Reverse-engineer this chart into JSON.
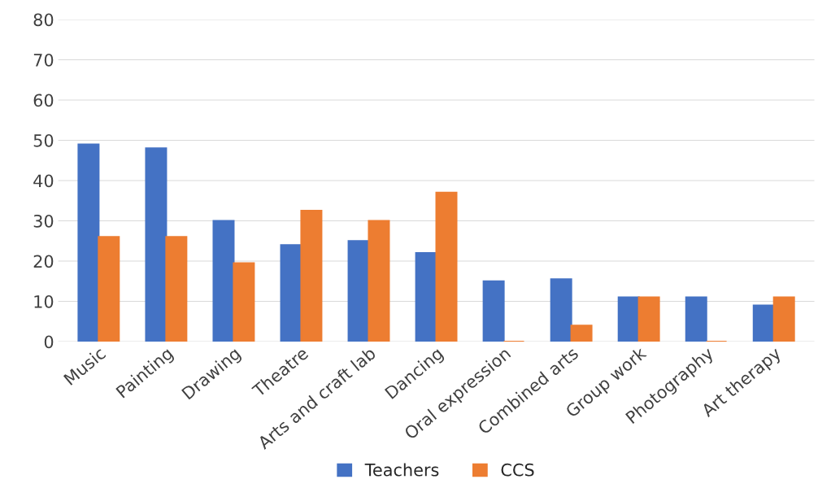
{
  "chart_data": {
    "type": "bar",
    "categories": [
      "Music",
      "Painting",
      "Drawing",
      "Theatre",
      "Arts and craft lab",
      "Dancing",
      "Oral expression",
      "Combined arts",
      "Group work",
      "Photography",
      "Art therapy"
    ],
    "series": [
      {
        "name": "Teachers",
        "color": "#4472c4",
        "values": [
          49,
          48,
          30,
          24,
          25,
          22,
          15,
          15.5,
          11,
          11,
          9
        ]
      },
      {
        "name": "CCS",
        "color": "#ed7d31",
        "values": [
          26,
          26,
          19.5,
          32.5,
          30,
          37,
          0,
          4,
          11,
          0,
          11
        ]
      }
    ],
    "ylim": [
      0,
      80
    ],
    "yticks": [
      0,
      10,
      20,
      30,
      40,
      50,
      60,
      70,
      80
    ],
    "grid": "y",
    "legend": "bottom"
  }
}
